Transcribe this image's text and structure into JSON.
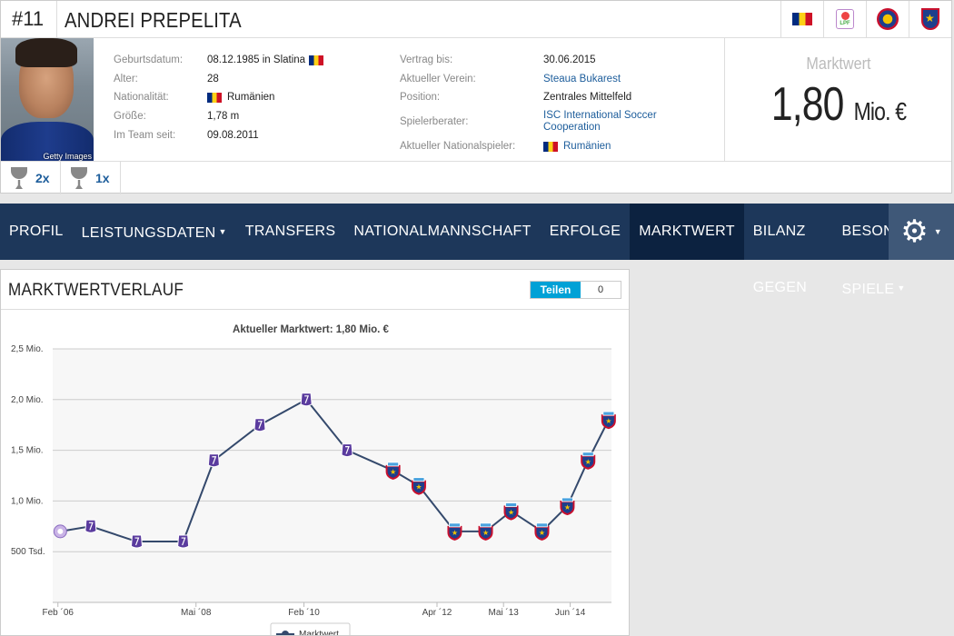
{
  "player": {
    "number": "#11",
    "name": "ANDREI PREPELITA",
    "photo_credit": "Getty Images"
  },
  "badges": [
    "romania-flag-icon",
    "lpf-league-icon",
    "frf-federation-icon",
    "steaua-crest-icon"
  ],
  "info_left": [
    {
      "label": "Geburtsdatum:",
      "value": "08.12.1985 in Slatina",
      "flag": "after"
    },
    {
      "label": "Alter:",
      "value": "28"
    },
    {
      "label": "Nationalität:",
      "value": "Rumänien",
      "flag": "before"
    },
    {
      "label": "Größe:",
      "value": "1,78 m"
    },
    {
      "label": "Im Team seit:",
      "value": "09.08.2011"
    }
  ],
  "info_right": [
    {
      "label": "Vertrag bis:",
      "value": "30.06.2015"
    },
    {
      "label": "Aktueller Verein:",
      "value": "Steaua Bukarest",
      "link": true
    },
    {
      "label": "Position:",
      "value": "Zentrales Mittelfeld"
    },
    {
      "label": "Spielerberater:",
      "value": "ISC International Soccer Cooperation",
      "link": true
    },
    {
      "label": "Aktueller  Nationalspieler:",
      "value": "Rumänien",
      "link": true,
      "flag": "before"
    }
  ],
  "market_value": {
    "label": "Marktwert",
    "amount": "1,80",
    "unit": "Mio. €"
  },
  "trophies": [
    {
      "count": "2x"
    },
    {
      "count": "1x"
    }
  ],
  "nav": {
    "items": [
      {
        "label": "PROFIL"
      },
      {
        "label": "LEISTUNGSDATEN",
        "caret": true
      },
      {
        "label": "TRANSFERS"
      },
      {
        "label": "NATIONALMANNSCHAFT"
      },
      {
        "label": "ERFOLGE"
      },
      {
        "label": "MARKTWERT",
        "active": true
      },
      {
        "label": "BILANZ GEGEN"
      },
      {
        "label": "BESONDERE SPIELE",
        "caret": true
      }
    ]
  },
  "panel": {
    "title": "MARKTWERTVERLAUF",
    "share_label": "Teilen",
    "share_count": "0"
  },
  "chart_data": {
    "type": "line",
    "title": "Aktueller Marktwert: 1,80 Mio. €",
    "y_ticks": [
      {
        "value": 0.5,
        "label": "500 Tsd."
      },
      {
        "value": 1.0,
        "label": "1,0 Mio."
      },
      {
        "value": 1.5,
        "label": "1,5 Mio."
      },
      {
        "value": 2.0,
        "label": "2,0 Mio."
      },
      {
        "value": 2.5,
        "label": "2,5 Mio."
      }
    ],
    "ylim": [
      0,
      2.5
    ],
    "x_ticks": [
      {
        "date": "2006-02-01",
        "label": "Feb ´06"
      },
      {
        "date": "2008-05-01",
        "label": "Mai ´08"
      },
      {
        "date": "2010-02-01",
        "label": "Feb ´10"
      },
      {
        "date": "2012-04-01",
        "label": "Apr ´12"
      },
      {
        "date": "2013-05-01",
        "label": "Mai ´13"
      },
      {
        "date": "2014-06-01",
        "label": "Jun ´14"
      }
    ],
    "xlim": [
      "2006-01-01",
      "2015-02-01"
    ],
    "legend": "Marktwert",
    "series": [
      {
        "values": [
          {
            "date": "2006-02-15",
            "value": 0.7,
            "club": "other"
          },
          {
            "date": "2006-08-15",
            "value": 0.75,
            "club": "prev"
          },
          {
            "date": "2007-05-15",
            "value": 0.6,
            "club": "prev"
          },
          {
            "date": "2008-02-15",
            "value": 0.6,
            "club": "prev"
          },
          {
            "date": "2008-08-15",
            "value": 1.4,
            "club": "prev"
          },
          {
            "date": "2009-05-15",
            "value": 1.75,
            "club": "prev"
          },
          {
            "date": "2010-02-15",
            "value": 2.0,
            "club": "prev"
          },
          {
            "date": "2010-10-15",
            "value": 1.5,
            "club": "prev"
          },
          {
            "date": "2011-07-15",
            "value": 1.3,
            "club": "steaua"
          },
          {
            "date": "2011-12-15",
            "value": 1.15,
            "club": "steaua"
          },
          {
            "date": "2012-07-15",
            "value": 0.7,
            "club": "steaua"
          },
          {
            "date": "2013-01-15",
            "value": 0.7,
            "club": "steaua"
          },
          {
            "date": "2013-06-15",
            "value": 0.9,
            "club": "steaua"
          },
          {
            "date": "2013-12-15",
            "value": 0.7,
            "club": "steaua"
          },
          {
            "date": "2014-05-15",
            "value": 0.95,
            "club": "steaua"
          },
          {
            "date": "2014-09-15",
            "value": 1.4,
            "club": "steaua"
          },
          {
            "date": "2015-01-15",
            "value": 1.8,
            "club": "steaua"
          }
        ]
      }
    ],
    "colors": {
      "line": "#34496c",
      "prev_marker": "#5a3b9e",
      "steaua_red": "#c8102e",
      "steaua_blue": "#1d3f8c",
      "grid": "#cccccc",
      "plot_bg": "#f7f7f7"
    }
  }
}
